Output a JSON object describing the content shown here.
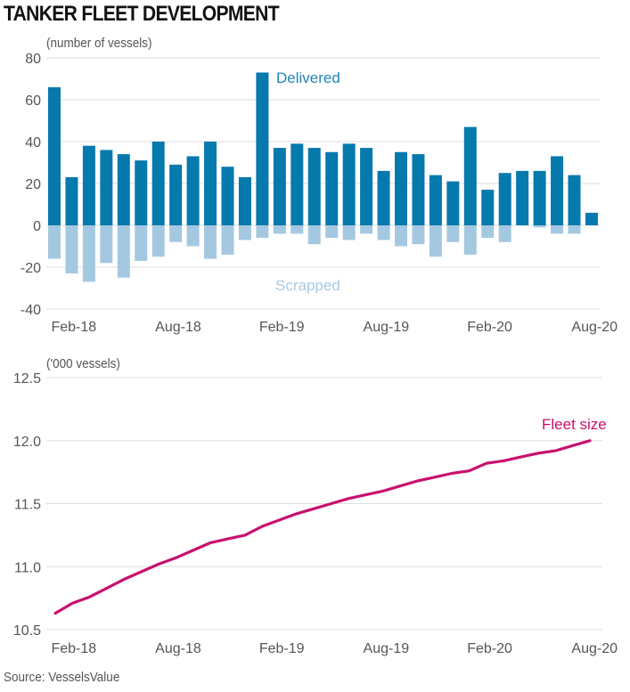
{
  "title": "TANKER FLEET DEVELOPMENT",
  "source": "Source: VesselsValue",
  "colors": {
    "delivered": "#0679ad",
    "scrapped": "#a5c8e1",
    "fleet": "#c8106e",
    "delivered_label": "#2384b8",
    "scrapped_label": "#a9c9e1"
  },
  "chart_data": [
    {
      "type": "bar",
      "title": "Tanker deliveries and scrapping",
      "ylabel": "(number of vessels)",
      "xlabel": "",
      "ylim": [
        -40,
        80
      ],
      "yticks": [
        80,
        60,
        40,
        20,
        0,
        -20,
        -40
      ],
      "grid": true,
      "xtick_labels": [
        {
          "index": 1,
          "label": "Feb-18"
        },
        {
          "index": 7,
          "label": "Aug-18"
        },
        {
          "index": 13,
          "label": "Feb-19"
        },
        {
          "index": 19,
          "label": "Aug-19"
        },
        {
          "index": 25,
          "label": "Feb-20"
        },
        {
          "index": 31,
          "label": "Aug-20"
        }
      ],
      "categories": [
        "Jan-18",
        "Feb-18",
        "Mar-18",
        "Apr-18",
        "May-18",
        "Jun-18",
        "Jul-18",
        "Aug-18",
        "Sep-18",
        "Oct-18",
        "Nov-18",
        "Dec-18",
        "Jan-19",
        "Feb-19",
        "Mar-19",
        "Apr-19",
        "May-19",
        "Jun-19",
        "Jul-19",
        "Aug-19",
        "Sep-19",
        "Oct-19",
        "Nov-19",
        "Dec-19",
        "Jan-20",
        "Feb-20",
        "Mar-20",
        "Apr-20",
        "May-20",
        "Jun-20",
        "Jul-20",
        "Aug-20"
      ],
      "series": [
        {
          "name": "Delivered",
          "values": [
            66,
            23,
            38,
            36,
            34,
            31,
            40,
            29,
            33,
            40,
            28,
            23,
            73,
            37,
            39,
            37,
            35,
            39,
            37,
            26,
            35,
            34,
            24,
            21,
            47,
            17,
            25,
            26,
            26,
            33,
            24,
            6
          ]
        },
        {
          "name": "Scrapped",
          "values": [
            -16,
            -23,
            -27,
            -18,
            -25,
            -17,
            -15,
            -8,
            -10,
            -16,
            -14,
            -7,
            -6,
            -4,
            -4,
            -9,
            -6,
            -7,
            -4,
            -7,
            -10,
            -9,
            -15,
            -8,
            -14,
            -6,
            -8,
            0,
            -1,
            -4,
            -4,
            0
          ]
        }
      ],
      "annotations": [
        {
          "text": "Delivered",
          "series": "Delivered"
        },
        {
          "text": "Scrapped",
          "series": "Scrapped"
        }
      ]
    },
    {
      "type": "line",
      "title": "Tanker fleet size",
      "ylabel": "('000 vessels)",
      "xlabel": "",
      "ylim": [
        10.5,
        12.5
      ],
      "yticks": [
        "12.5",
        "12.0",
        "11.5",
        "11.0",
        "10.5"
      ],
      "grid": true,
      "xtick_labels": [
        {
          "index": 1,
          "label": "Feb-18"
        },
        {
          "index": 7,
          "label": "Aug-18"
        },
        {
          "index": 13,
          "label": "Feb-19"
        },
        {
          "index": 19,
          "label": "Aug-19"
        },
        {
          "index": 25,
          "label": "Feb-20"
        },
        {
          "index": 31,
          "label": "Aug-20"
        }
      ],
      "series": [
        {
          "name": "Fleet size",
          "values": [
            10.63,
            10.71,
            10.76,
            10.83,
            10.9,
            10.96,
            11.02,
            11.07,
            11.13,
            11.19,
            11.22,
            11.25,
            11.32,
            11.37,
            11.42,
            11.46,
            11.5,
            11.54,
            11.57,
            11.6,
            11.64,
            11.68,
            11.71,
            11.74,
            11.76,
            11.82,
            11.84,
            11.87,
            11.9,
            11.92,
            11.96,
            12.0
          ]
        }
      ],
      "annotations": [
        {
          "text": "Fleet size",
          "series": "Fleet size"
        }
      ]
    }
  ]
}
